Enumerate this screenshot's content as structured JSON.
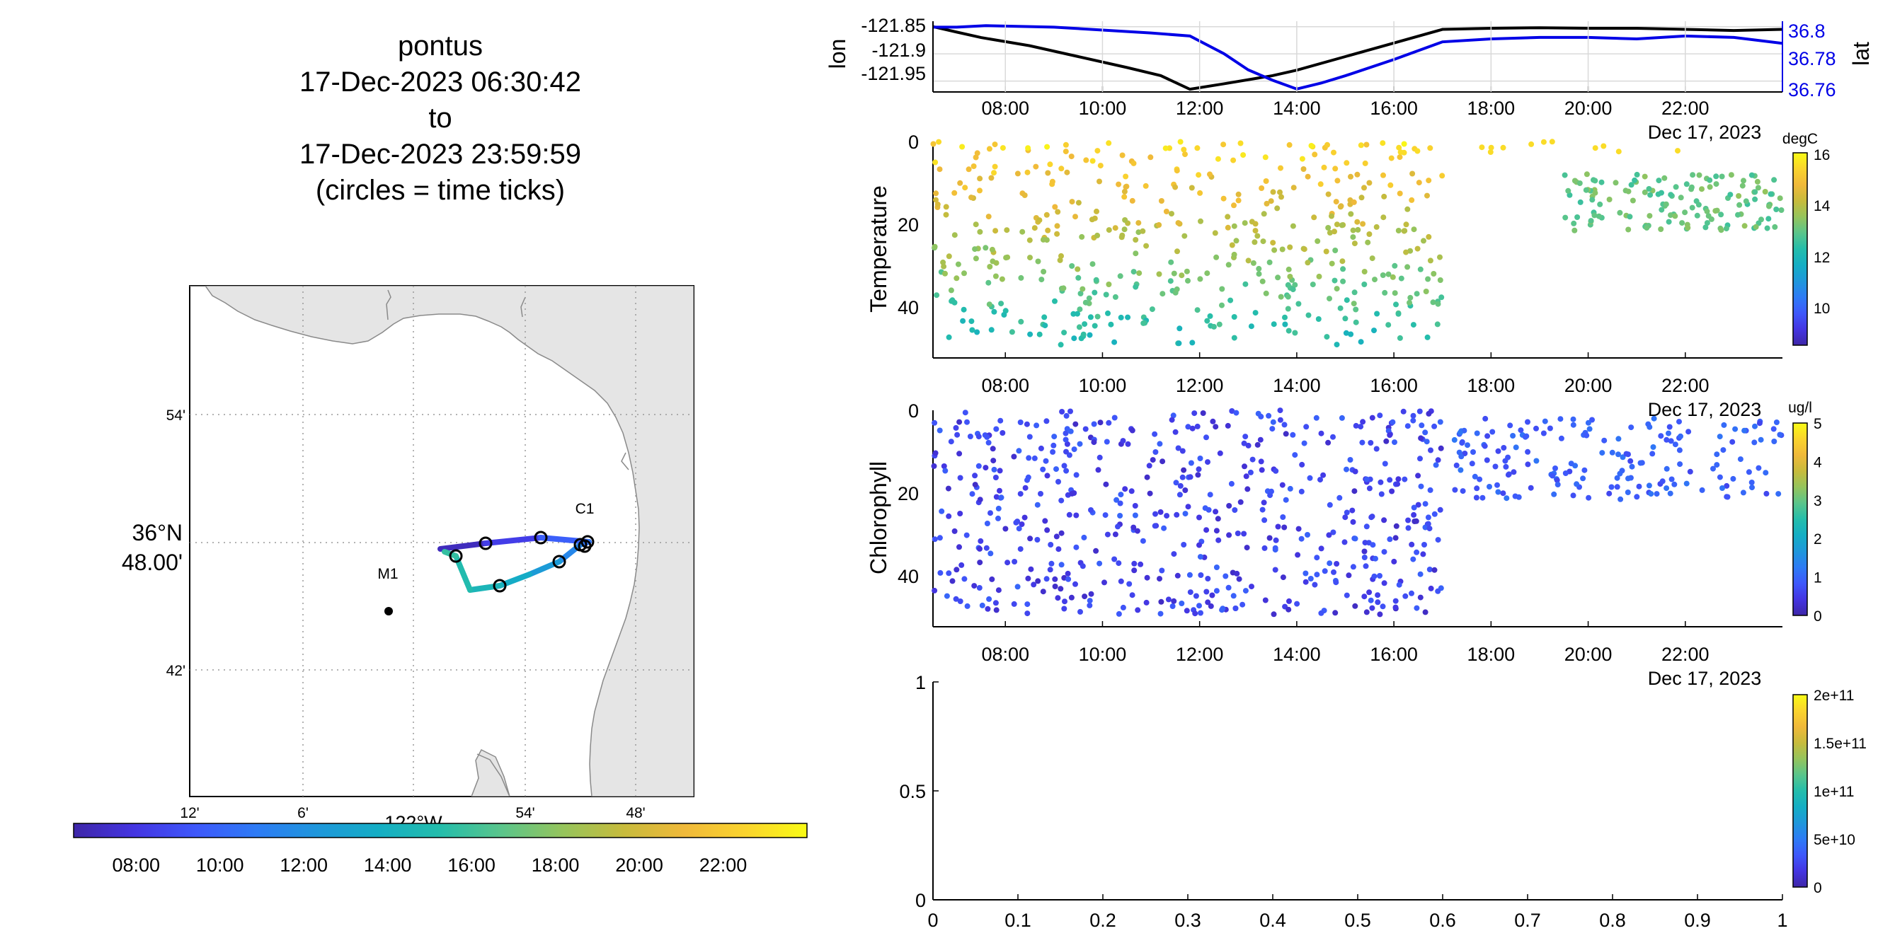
{
  "title": {
    "lines": [
      "pontus",
      "17-Dec-2023 06:30:42",
      "to",
      "17-Dec-2023 23:59:59",
      "(circles = time ticks)"
    ]
  },
  "colors": {
    "lat_line": "#0000e6",
    "lon_line": "#000000",
    "land": "#e5e5e5",
    "parula": [
      "#3e26a8",
      "#4435e2",
      "#3e58fb",
      "#2d7bf5",
      "#1e97db",
      "#14aec4",
      "#24bdab",
      "#5ac58b",
      "#95c45c",
      "#c7bb3c",
      "#f0b93a",
      "#fad42d",
      "#f9fb15"
    ]
  },
  "map": {
    "lon_ticks": [
      "12'",
      "6'",
      "54'",
      "48'"
    ],
    "lon_label": "122°W",
    "lat_ticks": [
      "54'",
      "42'"
    ],
    "lat_center_deg": "36°N",
    "lat_center_min": "48.00'",
    "stations": [
      {
        "name": "M1",
        "lon": -122.03,
        "lat": 36.75
      },
      {
        "name": "C1",
        "lon": -121.85,
        "lat": 36.8
      }
    ],
    "colorbar_ticks": [
      "08:00",
      "10:00",
      "12:00",
      "14:00",
      "16:00",
      "18:00",
      "20:00",
      "22:00"
    ]
  },
  "time_axis": {
    "ticks": [
      "08:00",
      "10:00",
      "12:00",
      "14:00",
      "16:00",
      "18:00",
      "20:00",
      "22:00"
    ],
    "tick_hours": [
      8,
      10,
      12,
      14,
      16,
      18,
      20,
      22
    ],
    "date_label": "Dec 17, 2023",
    "range_hours": [
      6.51,
      24.0
    ]
  },
  "chart_data": [
    {
      "type": "line",
      "ylabel": "lon",
      "y2label": "lat",
      "yticks": [
        "-121.85",
        "-121.9",
        "-121.95"
      ],
      "ylim": [
        -121.97,
        -121.84
      ],
      "y2ticks": [
        "36.8",
        "36.78",
        "36.76"
      ],
      "y2lim": [
        36.757,
        36.805
      ],
      "grid": true,
      "series": [
        {
          "name": "lon",
          "x": [
            6.51,
            7.0,
            7.5,
            8.5,
            9.5,
            10.5,
            11.2,
            11.8,
            12.5,
            13.5,
            14.0,
            15.0,
            16.0,
            17.0,
            18.0,
            19.0,
            20.0,
            21.0,
            22.0,
            23.0,
            24.0
          ],
          "values": [
            -121.85,
            -121.86,
            -121.87,
            -121.885,
            -121.905,
            -121.925,
            -121.94,
            -121.965,
            -121.955,
            -121.94,
            -121.93,
            -121.905,
            -121.88,
            -121.855,
            -121.853,
            -121.852,
            -121.853,
            -121.853,
            -121.855,
            -121.857,
            -121.855
          ]
        },
        {
          "name": "lat",
          "x": [
            6.51,
            7.0,
            7.6,
            9.0,
            10.0,
            11.0,
            11.8,
            12.5,
            13.0,
            13.5,
            14.0,
            14.5,
            15.0,
            16.0,
            17.0,
            18.0,
            19.0,
            20.0,
            21.0,
            22.0,
            23.0,
            24.0
          ],
          "values": [
            36.801,
            36.801,
            36.802,
            36.801,
            36.799,
            36.797,
            36.795,
            36.783,
            36.772,
            36.765,
            36.759,
            36.763,
            36.768,
            36.779,
            36.791,
            36.793,
            36.794,
            36.794,
            36.793,
            36.795,
            36.794,
            36.79
          ]
        }
      ]
    },
    {
      "type": "scatter",
      "ylabel": "Temperature",
      "ylim": [
        52,
        0
      ],
      "yticks": [
        "0",
        "20",
        "40"
      ],
      "colorbar": {
        "label": "degC",
        "ticks": [
          "16",
          "14",
          "12",
          "10"
        ],
        "range": [
          8.5,
          16
        ]
      },
      "x_range": [
        6.51,
        17.0
      ],
      "x_range_shallow": [
        19.5,
        24.0
      ],
      "y_range_shallow": [
        8,
        22
      ],
      "value_range": [
        12,
        15.8
      ],
      "shallow_value_range": [
        12.5,
        13.5
      ],
      "point_count": 560
    },
    {
      "type": "scatter",
      "ylabel": "Chlorophyll",
      "ylim": [
        52,
        0
      ],
      "yticks": [
        "0",
        "20",
        "40"
      ],
      "colorbar": {
        "label": "ug/l",
        "ticks": [
          "5",
          "4",
          "3",
          "2",
          "1",
          "0"
        ],
        "range": [
          0,
          5
        ]
      },
      "x_range": [
        6.51,
        17.0
      ],
      "x_range_shallow": [
        17.2,
        24.0
      ],
      "y_range_shallow": [
        2,
        22
      ],
      "value_range": [
        0.2,
        1.2
      ],
      "point_count": 640
    },
    {
      "type": "scatter",
      "xticks": [
        "0",
        "0.1",
        "0.2",
        "0.3",
        "0.4",
        "0.5",
        "0.6",
        "0.7",
        "0.8",
        "0.9",
        "1"
      ],
      "yticks": [
        "0",
        "0.5",
        "1"
      ],
      "xlim": [
        0,
        1
      ],
      "ylim": [
        0,
        1
      ],
      "colorbar": {
        "label": "",
        "ticks": [
          "2e+11",
          "1.5e+11",
          "1e+11",
          "5e+10",
          "0"
        ],
        "range": [
          0,
          200000000000
        ]
      },
      "points": []
    }
  ]
}
